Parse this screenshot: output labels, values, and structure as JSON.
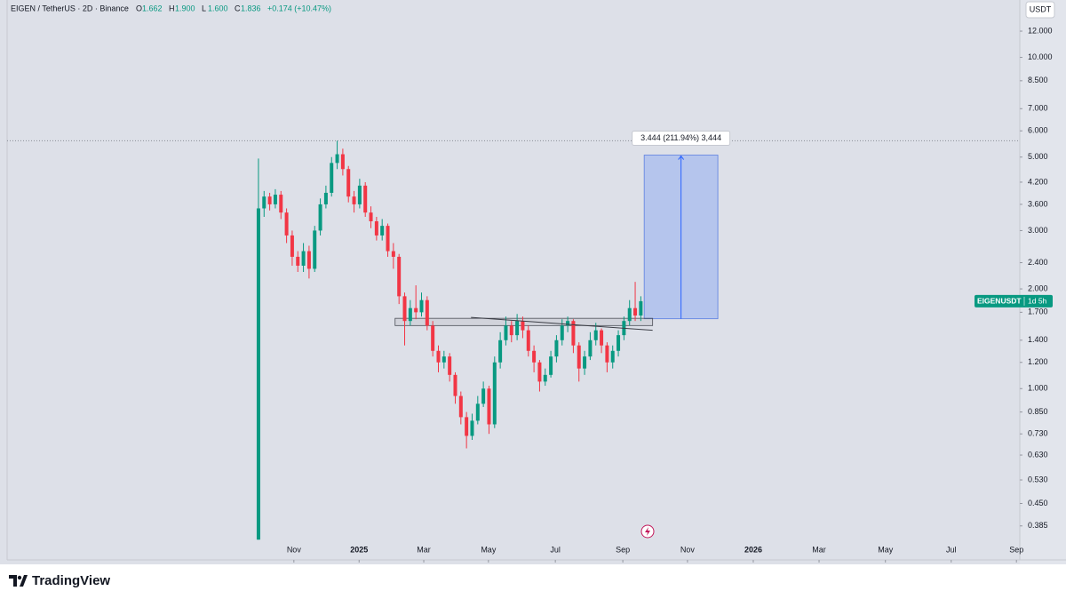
{
  "header": {
    "symbol": "EIGEN / TetherUS · 2D · Binance",
    "ohlc": [
      {
        "key": "O",
        "value": "1.662"
      },
      {
        "key": "H",
        "value": "1.900"
      },
      {
        "key": "L",
        "value": "1.600"
      },
      {
        "key": "C",
        "value": "1.836"
      }
    ],
    "change": "+0.174 (+10.47%)",
    "currency": "USDT"
  },
  "price_tag": {
    "symbol": "EIGENUSDT",
    "countdown": "1d 5h"
  },
  "footer": {
    "brand": "TradingView"
  },
  "chart_data": {
    "type": "candlestick",
    "log_scale": true,
    "grid": false,
    "up_color": "#089981",
    "down_color": "#f23645",
    "xlim": [
      -44.7,
      135.4
    ],
    "ylim": [
      0.304,
      14.9
    ],
    "xticks": [
      {
        "value": 6.3,
        "label": "Nov"
      },
      {
        "value": 17.9,
        "label": "2025"
      },
      {
        "value": 29.4,
        "label": "Mar"
      },
      {
        "value": 40.9,
        "label": "May"
      },
      {
        "value": 52.8,
        "label": "Jul"
      },
      {
        "value": 64.8,
        "label": "Sep"
      },
      {
        "value": 76.3,
        "label": "Nov"
      },
      {
        "value": 88.0,
        "label": "2026"
      },
      {
        "value": 99.7,
        "label": "Mar"
      },
      {
        "value": 111.5,
        "label": "May"
      },
      {
        "value": 123.2,
        "label": "Jul"
      },
      {
        "value": 134.8,
        "label": "Sep"
      }
    ],
    "yticks": [
      {
        "value": 12,
        "label": "12.000"
      },
      {
        "value": 10,
        "label": "10.000"
      },
      {
        "value": 8.5,
        "label": "8.500"
      },
      {
        "value": 7,
        "label": "7.000"
      },
      {
        "value": 6,
        "label": "6.000"
      },
      {
        "value": 5,
        "label": "5.000"
      },
      {
        "value": 4.2,
        "label": "4.200"
      },
      {
        "value": 3.6,
        "label": "3.600"
      },
      {
        "value": 3,
        "label": "3.000"
      },
      {
        "value": 2.4,
        "label": "2.400"
      },
      {
        "value": 2,
        "label": "2.000"
      },
      {
        "value": 1.7,
        "label": "1.700"
      },
      {
        "value": 1.4,
        "label": "1.400"
      },
      {
        "value": 1.2,
        "label": "1.200"
      },
      {
        "value": 1,
        "label": "1.000"
      },
      {
        "value": 0.85,
        "label": "0.850"
      },
      {
        "value": 0.73,
        "label": "0.730"
      },
      {
        "value": 0.63,
        "label": "0.630"
      },
      {
        "value": 0.53,
        "label": "0.530"
      },
      {
        "value": 0.45,
        "label": "0.450"
      },
      {
        "value": 0.385,
        "label": "0.385"
      }
    ],
    "open": [
      0.35,
      3.5,
      3.8,
      3.6,
      3.85,
      3.4,
      2.9,
      2.5,
      2.35,
      2.6,
      2.3,
      3.0,
      3.6,
      3.9,
      4.8,
      5.1,
      4.6,
      3.8,
      3.6,
      4.1,
      3.4,
      3.2,
      2.9,
      3.1,
      2.6,
      2.5,
      1.9,
      1.6,
      1.75,
      1.7,
      1.85,
      1.55,
      1.3,
      1.2,
      1.25,
      1.1,
      0.95,
      0.82,
      0.72,
      0.8,
      0.9,
      1.0,
      0.78,
      1.2,
      1.4,
      1.55,
      1.45,
      1.6,
      1.5,
      1.3,
      1.2,
      1.05,
      1.1,
      1.25,
      1.4,
      1.55,
      1.6,
      1.35,
      1.15,
      1.25,
      1.4,
      1.5,
      1.35,
      1.2,
      1.3,
      1.45,
      1.6,
      1.75,
      1.662
    ],
    "high": [
      4.95,
      3.95,
      3.9,
      4.0,
      3.95,
      3.5,
      3.0,
      2.6,
      2.75,
      2.7,
      3.1,
      3.75,
      4.1,
      5.0,
      5.6,
      5.3,
      4.7,
      3.95,
      4.3,
      4.2,
      3.55,
      3.3,
      3.25,
      3.15,
      2.75,
      2.55,
      1.95,
      1.85,
      2.05,
      1.95,
      1.9,
      1.6,
      1.35,
      1.3,
      1.28,
      1.12,
      0.98,
      0.85,
      0.84,
      0.95,
      1.05,
      1.02,
      1.25,
      1.48,
      1.65,
      1.6,
      1.68,
      1.65,
      1.55,
      1.35,
      1.22,
      1.15,
      1.3,
      1.45,
      1.62,
      1.65,
      1.62,
      1.38,
      1.3,
      1.48,
      1.58,
      1.52,
      1.38,
      1.35,
      1.5,
      1.65,
      1.85,
      2.1,
      1.9
    ],
    "low": [
      0.35,
      3.3,
      3.45,
      3.5,
      3.25,
      2.75,
      2.35,
      2.25,
      2.25,
      2.15,
      2.25,
      2.9,
      3.5,
      3.8,
      4.6,
      4.4,
      3.65,
      3.4,
      3.5,
      3.3,
      3.05,
      2.8,
      2.8,
      2.5,
      2.3,
      1.8,
      1.35,
      1.55,
      1.62,
      1.65,
      1.5,
      1.25,
      1.12,
      1.15,
      1.05,
      0.9,
      0.78,
      0.66,
      0.7,
      0.78,
      0.88,
      0.73,
      0.76,
      1.15,
      1.35,
      1.38,
      1.4,
      1.42,
      1.25,
      1.12,
      0.98,
      1.02,
      1.08,
      1.2,
      1.35,
      1.48,
      1.28,
      1.05,
      1.1,
      1.22,
      1.35,
      1.28,
      1.12,
      1.15,
      1.25,
      1.4,
      1.55,
      1.6,
      1.6
    ],
    "close": [
      3.5,
      3.8,
      3.6,
      3.85,
      3.4,
      2.9,
      2.5,
      2.35,
      2.6,
      2.3,
      3.0,
      3.6,
      3.9,
      4.8,
      5.1,
      4.6,
      3.8,
      3.6,
      4.1,
      3.4,
      3.2,
      2.9,
      3.1,
      2.6,
      2.5,
      1.9,
      1.6,
      1.75,
      1.7,
      1.85,
      1.55,
      1.3,
      1.2,
      1.25,
      1.1,
      0.95,
      0.82,
      0.72,
      0.8,
      0.9,
      1.0,
      0.78,
      1.2,
      1.4,
      1.55,
      1.45,
      1.6,
      1.5,
      1.3,
      1.2,
      1.05,
      1.1,
      1.25,
      1.4,
      1.55,
      1.6,
      1.35,
      1.15,
      1.25,
      1.4,
      1.5,
      1.35,
      1.2,
      1.3,
      1.45,
      1.6,
      1.75,
      1.662,
      1.836
    ],
    "high_line": 5.6,
    "zone": {
      "x": [
        24.3,
        70.1
      ],
      "y": [
        1.55,
        1.63
      ]
    },
    "trendline": {
      "x": [
        37.8,
        70.1
      ],
      "y": [
        1.64,
        1.5
      ]
    },
    "measure": {
      "x": [
        68.6,
        81.7
      ],
      "from": 1.625,
      "to": 5.069,
      "label": "3.444 (211.94%) 3,444"
    }
  }
}
